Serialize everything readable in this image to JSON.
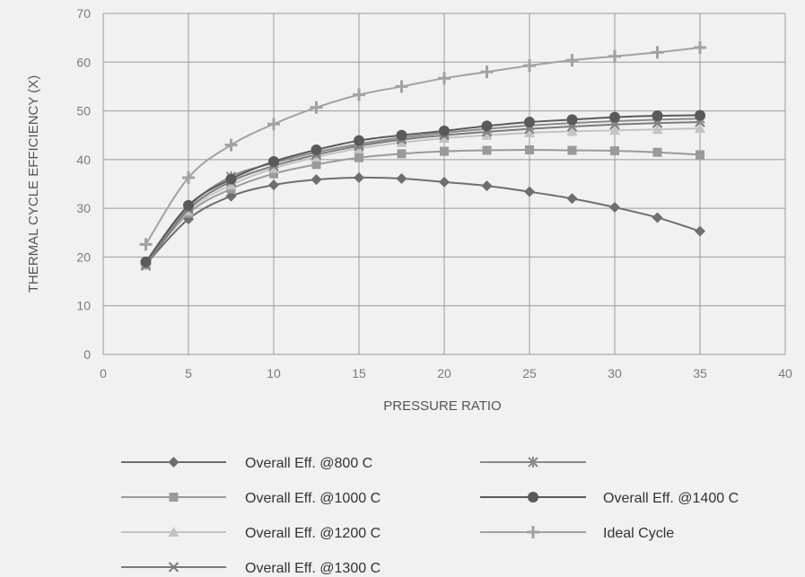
{
  "chart_data": {
    "type": "line",
    "xlabel": "PRESSURE RATIO",
    "ylabel": "THERMAL CYCLE EFFICIENCY (X)",
    "xlim": [
      0,
      40
    ],
    "ylim": [
      0,
      70
    ],
    "xticks": [
      0,
      5,
      10,
      15,
      20,
      25,
      30,
      35,
      40
    ],
    "yticks": [
      0,
      10,
      20,
      30,
      40,
      50,
      60,
      70
    ],
    "grid": true,
    "legend_position": "bottom",
    "x": [
      2.5,
      5,
      7.5,
      10,
      12.5,
      15,
      17.5,
      20,
      22.5,
      25,
      27.5,
      30,
      32.5,
      35
    ],
    "series": [
      {
        "name": "Overall Eff. @800 C",
        "marker": "diamond",
        "color": "#6e6e6e",
        "values": [
          18.5,
          27.8,
          32.5,
          34.8,
          35.9,
          36.3,
          36.1,
          35.4,
          34.6,
          33.4,
          32.0,
          30.2,
          28.1,
          25.3
        ]
      },
      {
        "name": "Overall Eff. @1000 C",
        "marker": "square",
        "color": "#9a9a9a",
        "values": [
          18.7,
          29.0,
          34.0,
          37.1,
          39.0,
          40.4,
          41.2,
          41.7,
          41.9,
          42.0,
          41.9,
          41.8,
          41.5,
          41.0
        ]
      },
      {
        "name": "Overall Eff. @1200 C",
        "marker": "triangle",
        "color": "#c3c3c3",
        "values": [
          18.8,
          29.5,
          34.8,
          38.2,
          40.5,
          42.3,
          43.5,
          44.4,
          45.0,
          45.5,
          45.8,
          46.0,
          46.2,
          46.4
        ]
      },
      {
        "name": "Overall Eff. @1300 C",
        "marker": "x",
        "color": "#7a7a7a",
        "values": [
          18.2,
          29.8,
          35.5,
          38.7,
          41.0,
          42.8,
          44.1,
          45.0,
          45.7,
          46.3,
          46.8,
          47.2,
          47.5,
          47.7
        ]
      },
      {
        "name": "",
        "marker": "star",
        "color": "#8a8a8a",
        "values": [
          18.5,
          30.3,
          36.5,
          39.3,
          41.5,
          43.2,
          44.5,
          45.5,
          46.3,
          47.0,
          47.5,
          47.9,
          48.2,
          48.4
        ]
      },
      {
        "name": "Overall Eff. @1400 C",
        "marker": "circle",
        "color": "#5a5a5a",
        "values": [
          19.0,
          30.6,
          36.0,
          39.6,
          42.0,
          43.9,
          45.0,
          45.9,
          46.9,
          47.7,
          48.2,
          48.7,
          49.0,
          49.1
        ]
      },
      {
        "name": "Ideal Cycle",
        "marker": "plus",
        "color": "#a2a2a2",
        "values": [
          22.6,
          36.3,
          43.0,
          47.3,
          50.7,
          53.3,
          55.0,
          56.7,
          58.0,
          59.3,
          60.4,
          61.2,
          62.0,
          63.0
        ]
      }
    ]
  }
}
